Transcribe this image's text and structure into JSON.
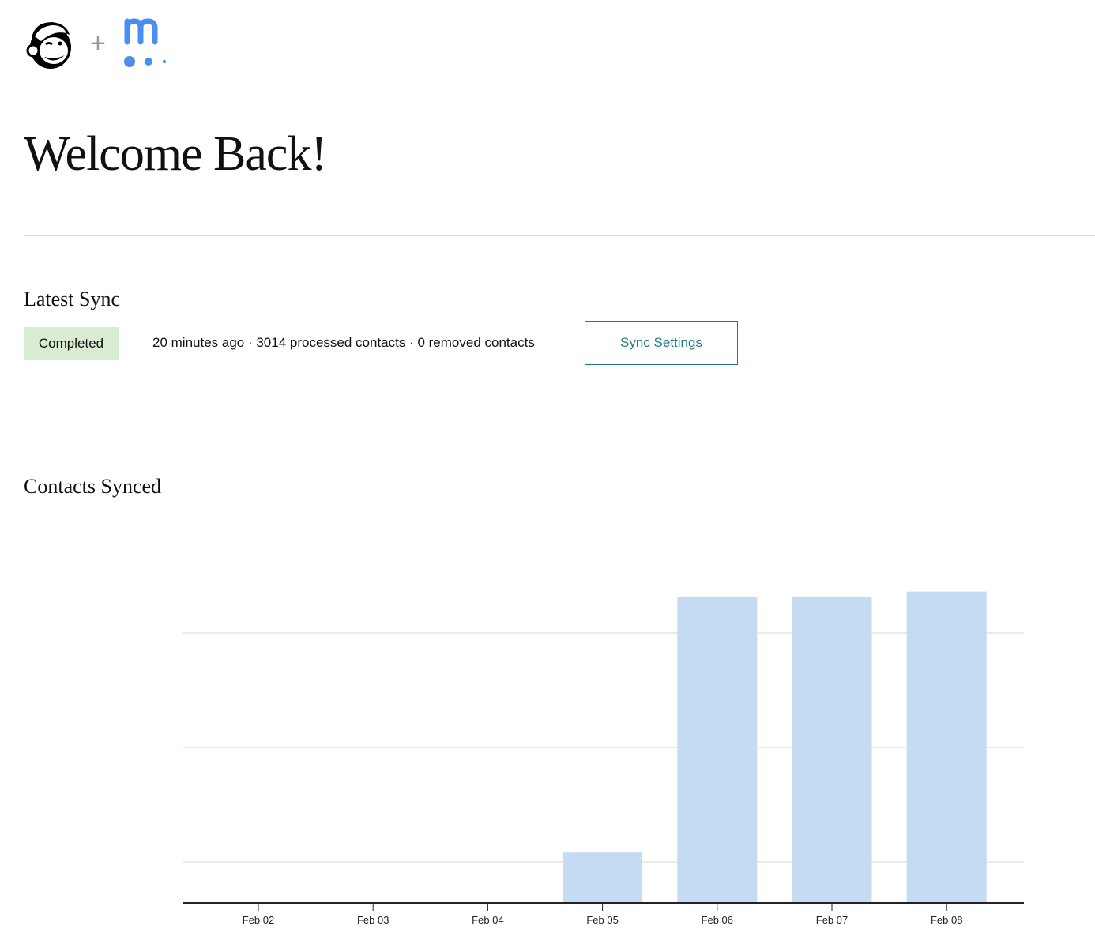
{
  "header": {
    "logos": [
      {
        "name": "mailchimp",
        "icon": "mailchimp-freddie-logo"
      },
      {
        "name": "meetup",
        "icon": "meetup-m-logo",
        "color": "#4c8ef0"
      }
    ],
    "plus": "+"
  },
  "page_title": "Welcome Back!",
  "latest_sync": {
    "heading": "Latest Sync",
    "status": "Completed",
    "status_color": "#d9ebd1",
    "details": "20 minutes ago · 3014 processed contacts · 0 removed contacts",
    "settings_button": "Sync Settings",
    "accent_color": "#1d7a80"
  },
  "contacts_synced": {
    "heading": "Contacts Synced"
  },
  "chart_data": {
    "type": "bar",
    "categories": [
      "Feb 02",
      "Feb 03",
      "Feb 04",
      "Feb 05",
      "Feb 06",
      "Feb 07",
      "Feb 08"
    ],
    "values": [
      0,
      0,
      0,
      440,
      2670,
      2670,
      2720
    ],
    "ylim": [
      0,
      2800
    ],
    "gridlines": [
      359,
      1359,
      2359
    ],
    "y_tick_labels_shown": false,
    "grid": true,
    "bar_color": "#c5dbf1",
    "title": "",
    "xlabel": "",
    "ylabel": ""
  }
}
